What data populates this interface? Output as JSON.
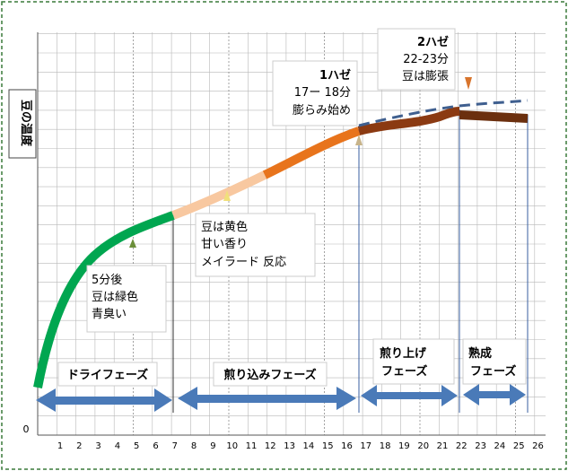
{
  "chart_data": {
    "type": "line",
    "ylabel": "豆の温度",
    "y_origin_label": "0",
    "x_ticks": [
      "1",
      "2",
      "3",
      "4",
      "5",
      "6",
      "7",
      "8",
      "9",
      "10",
      "11",
      "12",
      "13",
      "14",
      "15",
      "16",
      "17",
      "18",
      "19",
      "20",
      "21",
      "22",
      "23",
      "24",
      "25",
      "26"
    ],
    "segments": [
      {
        "phase": "green",
        "color": "#00a650"
      },
      {
        "phase": "yellow",
        "color": "#f8c8a0"
      },
      {
        "phase": "orange",
        "color": "#e8741c"
      },
      {
        "phase": "brown",
        "color": "#8b3a12"
      },
      {
        "phase": "dark-brown",
        "color": "#6b2f0e"
      }
    ],
    "dashed_line_color": "#3f5f8f"
  },
  "callouts": {
    "c5min": {
      "line1": "5分後",
      "line2": "豆は緑色",
      "line3": "青臭い"
    },
    "yellow": {
      "line1": "豆は黄色",
      "line2": "甘い香り",
      "line3": "メイラード 反応"
    },
    "hz1": {
      "line1": "1ハゼ",
      "line2": "17ー 18分",
      "line3": "膨らみ始め"
    },
    "hz2": {
      "line1": "2ハゼ",
      "line2": "22-23分",
      "line3": "豆は膨張"
    }
  },
  "phases": {
    "dry": "ドライフェーズ",
    "roast": "煎り込みフェーズ",
    "finish_1": "煎り上げ",
    "finish_2": "フェーズ",
    "mature_1": "熟成",
    "mature_2": "フェーズ"
  },
  "colors": {
    "arrow": "#4a7ab8",
    "grid": "#b8b8b8",
    "frame": "#3a7a3a"
  }
}
